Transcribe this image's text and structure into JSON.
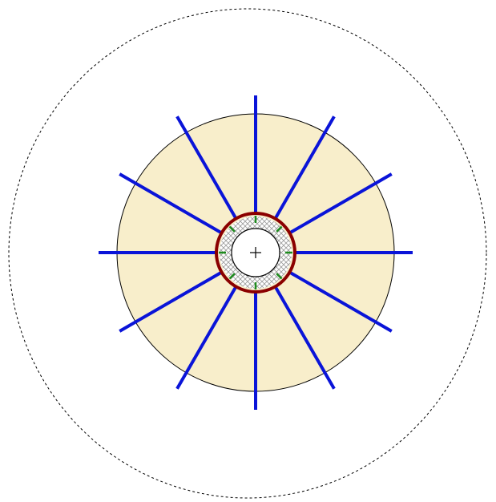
{
  "diagram": {
    "radial_count": 12,
    "tie_count": 8,
    "colors": {
      "background": "#ffffff",
      "fill_zone": "#f8eecb",
      "fill_zone_outline": "#000000",
      "outer_boundary": "#000000",
      "radials": "#0a14d8",
      "ring_outline": "#8b0000",
      "ring_hatch": "#9a9a9a",
      "ties": "#1d8c1d",
      "inner_circle": "#000000",
      "center_mark": "#000000"
    },
    "icons": {
      "center_mark": "plus-icon"
    }
  }
}
